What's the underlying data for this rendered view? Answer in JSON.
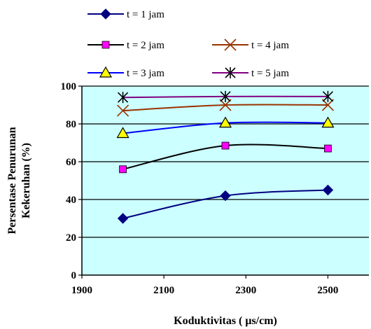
{
  "chart_data": {
    "type": "line",
    "title": "",
    "xlabel": "Koduktivitas ( μs/cm)",
    "ylabel_lines": [
      "Persentase Penurunan",
      "Kekeruhan (%)"
    ],
    "xlim": [
      1900,
      2600
    ],
    "ylim": [
      0,
      100
    ],
    "x_ticks": [
      1900,
      2100,
      2300,
      2500
    ],
    "y_ticks": [
      0,
      20,
      40,
      60,
      80,
      100
    ],
    "grid": "horizontal",
    "legend_position": "top",
    "plot_background": "#ccffff",
    "x": [
      2000,
      2250,
      2500
    ],
    "series": [
      {
        "name": "t = 1 jam",
        "values": [
          30,
          42,
          45
        ],
        "color": "#000080",
        "marker": "diamond"
      },
      {
        "name": "t = 2 jam",
        "values": [
          56,
          68.5,
          67
        ],
        "color": "#000000",
        "marker": "square",
        "marker_color": "#ff00ff"
      },
      {
        "name": "t = 3 jam",
        "values": [
          75,
          80.5,
          80.5
        ],
        "color": "#0000ff",
        "marker": "triangle",
        "marker_color": "#ffff00"
      },
      {
        "name": "t = 4 jam",
        "values": [
          87,
          90,
          90
        ],
        "color": "#993300",
        "marker": "x"
      },
      {
        "name": "t = 5 jam",
        "values": [
          94,
          94.5,
          94.5
        ],
        "color": "#800080",
        "marker": "star"
      }
    ]
  }
}
